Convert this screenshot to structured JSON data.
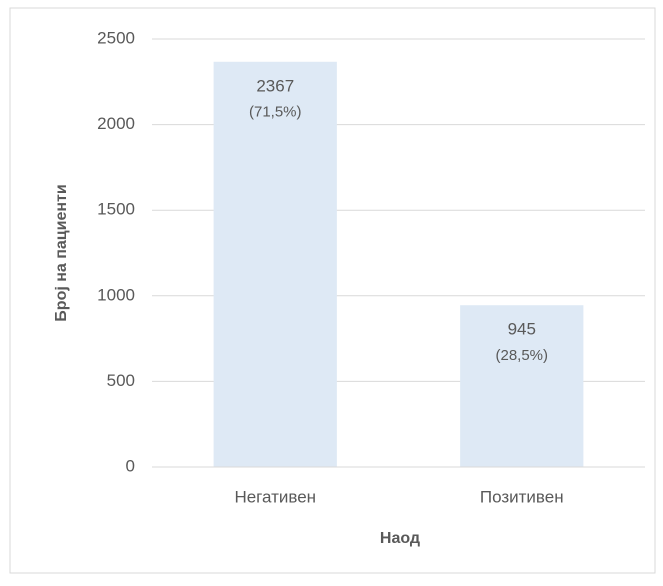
{
  "chart_data": {
    "type": "bar",
    "categories": [
      "Негативен",
      "Позитивен"
    ],
    "values": [
      2367,
      945
    ],
    "shares": [
      71.5,
      28.5
    ],
    "share_labels": [
      "(71,5%)",
      "(28,5%)"
    ],
    "color": "#dee9f5",
    "ylim": [
      0,
      2500
    ],
    "yticks": [
      0,
      500,
      1000,
      1500,
      2000,
      2500
    ],
    "grid": true,
    "x_label": "Наод",
    "y_label": "Број на пациенти"
  }
}
